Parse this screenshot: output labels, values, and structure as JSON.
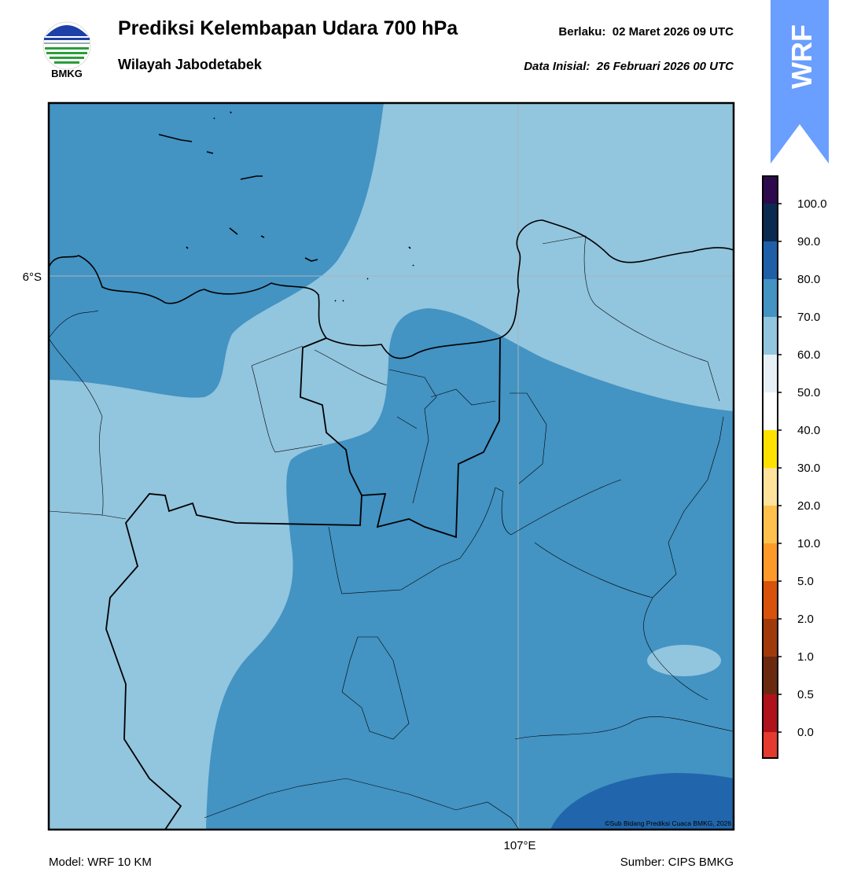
{
  "header": {
    "title": "Prediksi Kelembapan Udara 700 hPa",
    "subtitle": "Wilayah Jabodetabek",
    "valid": "Berlaku:  02 Maret 2026 09 UTC",
    "initial": "Data Inisial:  26 Februari 2026 00 UTC"
  },
  "logo": {
    "label": "BMKG"
  },
  "badge": {
    "label": "WRF"
  },
  "map": {
    "lat_label": "6°S",
    "lon_label": "107°E",
    "credit": "©Sub Bidang Prediksi Cuaca BMKG, 2026"
  },
  "colorbar": {
    "labels": [
      "100.0",
      "90.0",
      "80.0",
      "70.0",
      "60.0",
      "50.0",
      "40.0",
      "30.0",
      "20.0",
      "10.0",
      "5.0",
      "2.0",
      "1.0",
      "0.5",
      "0.0"
    ],
    "colors": [
      "#2d0a4e",
      "#0c2a50",
      "#1f5fa8",
      "#4393c3",
      "#92c5de",
      "#e8f0f7",
      "#ffffff",
      "#ffe100",
      "#ffe39a",
      "#ffc04c",
      "#ff9a2a",
      "#d9520c",
      "#a03a0a",
      "#6b2a10",
      "#b0121b",
      "#e53b2f"
    ]
  },
  "footer": {
    "model": "Model: WRF 10 KM",
    "source": "Sumber: CIPS BMKG"
  }
}
